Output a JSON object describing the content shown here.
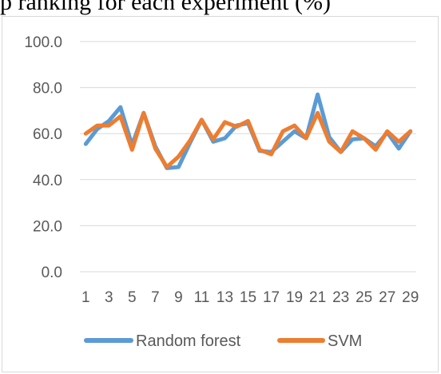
{
  "caption": "p ranking for each experiment (%)",
  "chart_data": {
    "type": "line",
    "title": "",
    "xlabel": "",
    "ylabel": "",
    "ylim": [
      0,
      100
    ],
    "y_ticks": [
      "0.0",
      "20.0",
      "40.0",
      "60.0",
      "80.0",
      "100.0"
    ],
    "x": [
      1,
      2,
      3,
      4,
      5,
      6,
      7,
      8,
      9,
      10,
      11,
      12,
      13,
      14,
      15,
      16,
      17,
      18,
      19,
      20,
      21,
      22,
      23,
      24,
      25,
      26,
      27,
      28,
      29
    ],
    "x_tick_labels": [
      "1",
      "3",
      "5",
      "7",
      "9",
      "11",
      "13",
      "15",
      "17",
      "19",
      "21",
      "23",
      "25",
      "27",
      "29"
    ],
    "grid": true,
    "legend_position": "bottom",
    "series": [
      {
        "name": "Random forest",
        "color": "#5b9bd5",
        "values": [
          55.5,
          62,
          65.5,
          71.5,
          55,
          69,
          54.5,
          45,
          45.5,
          56,
          66,
          56.5,
          58,
          63.5,
          64.5,
          52.5,
          52,
          56.5,
          61,
          58,
          77,
          58.5,
          52,
          57.5,
          58,
          54.5,
          60.5,
          53.5,
          61
        ]
      },
      {
        "name": "SVM",
        "color": "#ed7d31",
        "values": [
          60,
          63.5,
          63.5,
          67.5,
          53,
          69,
          53.5,
          45.5,
          50,
          57,
          66,
          57.5,
          65,
          63,
          65.5,
          53,
          51,
          61,
          63.5,
          58,
          69,
          56.5,
          52,
          61,
          58,
          53,
          61,
          56.5,
          61
        ]
      }
    ]
  }
}
